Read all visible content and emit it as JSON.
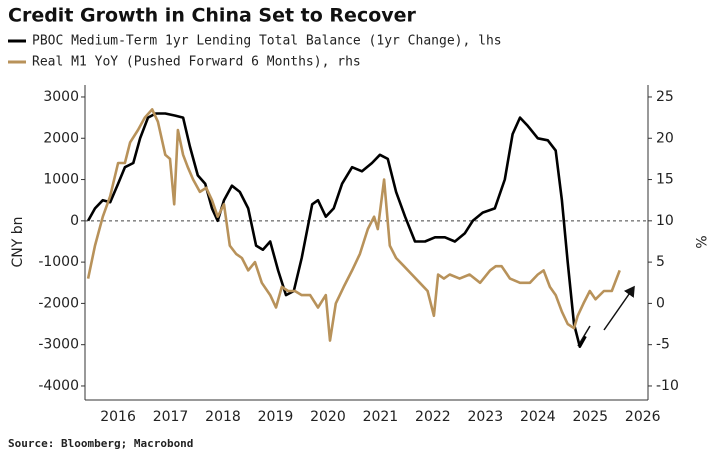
{
  "chart_data": {
    "type": "line",
    "title": "Credit Growth in China Set to Recover",
    "ylabel": "CNY bn",
    "y2label": "%",
    "source": "Source: Bloomberg; Macrobond",
    "xlim": [
      2015.87,
      2026.6
    ],
    "xticks": [
      {
        "value": 2016.5,
        "label": "2016"
      },
      {
        "value": 2017.5,
        "label": "2017"
      },
      {
        "value": 2018.5,
        "label": "2018"
      },
      {
        "value": 2019.5,
        "label": "2019"
      },
      {
        "value": 2020.5,
        "label": "2020"
      },
      {
        "value": 2021.5,
        "label": "2021"
      },
      {
        "value": 2022.5,
        "label": "2022"
      },
      {
        "value": 2023.5,
        "label": "2023"
      },
      {
        "value": 2024.5,
        "label": "2024"
      },
      {
        "value": 2025.5,
        "label": "2025"
      },
      {
        "value": 2026.5,
        "label": "2026"
      }
    ],
    "ylim": [
      -4340,
      3290
    ],
    "yticks": [
      -4000,
      -3000,
      -2000,
      -1000,
      0,
      1000,
      2000,
      3000
    ],
    "y2lim": [
      -11.7,
      26.45
    ],
    "y2ticks": [
      -10,
      -5,
      0,
      5,
      10,
      15,
      20,
      25
    ],
    "reference_line": 0,
    "series": [
      {
        "name": "PBOC Medium-Term 1yr Lending Total Balance (1yr Change), lhs",
        "color": "#000000",
        "axis": "y",
        "x": [
          2015.93,
          2016.06,
          2016.21,
          2016.35,
          2016.5,
          2016.63,
          2016.79,
          2016.92,
          2017.07,
          2017.22,
          2017.4,
          2017.59,
          2017.74,
          2017.87,
          2018.02,
          2018.16,
          2018.29,
          2018.4,
          2018.52,
          2018.67,
          2018.82,
          2018.98,
          2019.13,
          2019.26,
          2019.4,
          2019.55,
          2019.7,
          2019.85,
          2020.0,
          2020.2,
          2020.31,
          2020.46,
          2020.61,
          2020.77,
          2020.96,
          2021.15,
          2021.34,
          2021.49,
          2021.64,
          2021.8,
          2021.97,
          2022.16,
          2022.35,
          2022.54,
          2022.73,
          2022.92,
          2023.11,
          2023.26,
          2023.45,
          2023.68,
          2023.87,
          2024.02,
          2024.16,
          2024.31,
          2024.5,
          2024.69,
          2024.84,
          2024.96,
          2025.07,
          2025.19,
          2025.3,
          2025.41
        ],
        "values": [
          0,
          300,
          500,
          450,
          900,
          1300,
          1400,
          2000,
          2500,
          2600,
          2600,
          2550,
          2500,
          1800,
          1100,
          900,
          300,
          0,
          500,
          850,
          700,
          300,
          -600,
          -700,
          -500,
          -1200,
          -1800,
          -1700,
          -900,
          400,
          500,
          100,
          300,
          900,
          1300,
          1200,
          1400,
          1600,
          1500,
          700,
          100,
          -500,
          -500,
          -400,
          -400,
          -500,
          -300,
          0,
          200,
          300,
          1000,
          2100,
          2500,
          2300,
          2000,
          1950,
          1700,
          500,
          -1000,
          -2500,
          -3050,
          -2800
        ]
      },
      {
        "name": "Real M1 YoY (Pushed Forward 6 Months), rhs",
        "color": "#b8925a",
        "axis": "y2",
        "x": [
          2015.93,
          2016.06,
          2016.21,
          2016.35,
          2016.5,
          2016.63,
          2016.73,
          2016.88,
          2017.01,
          2017.15,
          2017.26,
          2017.4,
          2017.49,
          2017.57,
          2017.64,
          2017.74,
          2017.83,
          2017.93,
          2018.06,
          2018.18,
          2018.29,
          2018.4,
          2018.52,
          2018.63,
          2018.75,
          2018.86,
          2018.98,
          2019.11,
          2019.24,
          2019.4,
          2019.51,
          2019.62,
          2019.74,
          2019.87,
          2020.0,
          2020.16,
          2020.31,
          2020.46,
          2020.54,
          2020.65,
          2020.8,
          2020.96,
          2021.11,
          2021.26,
          2021.38,
          2021.45,
          2021.57,
          2021.68,
          2021.8,
          2021.95,
          2022.1,
          2022.25,
          2022.4,
          2022.52,
          2022.6,
          2022.71,
          2022.82,
          2023.01,
          2023.2,
          2023.4,
          2023.59,
          2023.7,
          2023.81,
          2023.97,
          2024.16,
          2024.35,
          2024.5,
          2024.61,
          2024.73,
          2024.84,
          2024.96,
          2025.07,
          2025.19,
          2025.26,
          2025.37,
          2025.49,
          2025.6,
          2025.76,
          2025.91,
          2026.06
        ],
        "values": [
          3,
          7,
          10.5,
          13,
          17,
          17,
          19.5,
          21,
          22.5,
          23.5,
          22,
          18,
          17.5,
          12,
          21,
          18,
          16.5,
          15,
          13.5,
          14,
          12.5,
          10.5,
          12,
          7,
          6,
          5.5,
          4,
          5,
          2.5,
          1,
          -0.5,
          2,
          1.5,
          1.5,
          1,
          1,
          -0.5,
          1,
          -4.5,
          0,
          2,
          4,
          6,
          9,
          10.5,
          9,
          15,
          7,
          5.5,
          4.5,
          3.5,
          2.5,
          1.5,
          -1.5,
          3.5,
          3,
          3.5,
          3,
          3.5,
          2.5,
          4,
          4.5,
          4.5,
          3,
          2.5,
          2.5,
          3.5,
          4,
          2,
          1,
          -1,
          -2.5,
          -3,
          -1.5,
          0,
          1.5,
          0.5,
          1.5,
          1.5,
          4
        ]
      }
    ]
  }
}
